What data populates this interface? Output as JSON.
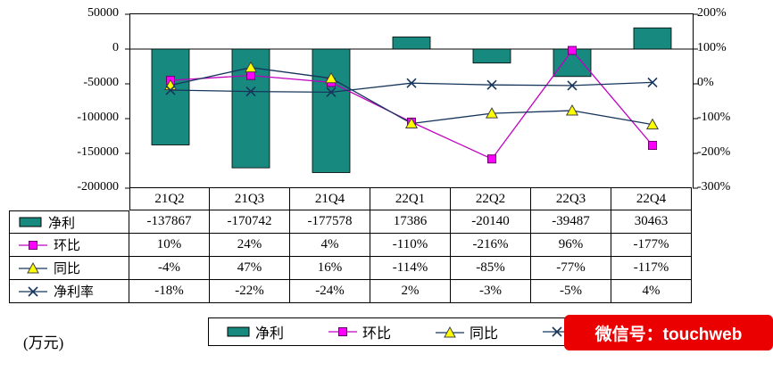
{
  "unit_label": "(万元)",
  "watermark": {
    "text": "微信号：touchweb",
    "bg": "#ea0000",
    "fg": "#ffffff"
  },
  "chart_data": {
    "type": "bar+line",
    "categories": [
      "21Q2",
      "21Q3",
      "21Q4",
      "22Q1",
      "22Q2",
      "22Q3",
      "22Q4"
    ],
    "series": [
      {
        "name": "净利",
        "type": "bar",
        "axis": "left",
        "unit": "万元",
        "color": "#17897f",
        "border_color": "#000000",
        "values": [
          -137867,
          -170742,
          -177578,
          17386,
          -20140,
          -39487,
          30463
        ]
      },
      {
        "name": "环比",
        "type": "line",
        "marker": "square",
        "axis": "right",
        "unit": "%",
        "line_color": "#c000c0",
        "marker_color": "#ff00ff",
        "values": [
          10,
          24,
          4,
          -110,
          -216,
          96,
          -177
        ]
      },
      {
        "name": "同比",
        "type": "line",
        "marker": "triangle",
        "axis": "right",
        "unit": "%",
        "line_color": "#16365c",
        "marker_color": "#ffff00",
        "values": [
          -4,
          47,
          16,
          -114,
          -85,
          -77,
          -117
        ]
      },
      {
        "name": "净利率",
        "type": "line",
        "marker": "x",
        "axis": "right",
        "unit": "%",
        "line_color": "#16365c",
        "marker_color": "#16365c",
        "values": [
          -18,
          -22,
          -24,
          2,
          -3,
          -5,
          4
        ]
      }
    ],
    "left_axis": {
      "min": -200000,
      "max": 50000,
      "tick_labels": [
        "50000",
        "0",
        "-50000",
        "-100000",
        "-150000",
        "-200000"
      ]
    },
    "right_axis": {
      "min": -300,
      "max": 200,
      "tick_labels": [
        "200%",
        "100%",
        "0%",
        "-100%",
        "-200%",
        "-300%"
      ]
    },
    "grid": false,
    "legend_position": "bottom"
  },
  "table": {
    "columns": [
      "21Q2",
      "21Q3",
      "21Q4",
      "22Q1",
      "22Q2",
      "22Q3",
      "22Q4"
    ],
    "row_labels": [
      "净利",
      "环比",
      "同比",
      "净利率"
    ],
    "rows": [
      [
        "-137867",
        "-170742",
        "-177578",
        "17386",
        "-20140",
        "-39487",
        "30463"
      ],
      [
        "10%",
        "24%",
        "4%",
        "-110%",
        "-216%",
        "96%",
        "-177%"
      ],
      [
        "-4%",
        "47%",
        "16%",
        "-114%",
        "-85%",
        "-77%",
        "-117%"
      ],
      [
        "-18%",
        "-22%",
        "-24%",
        "2%",
        "-3%",
        "-5%",
        "4%"
      ]
    ]
  },
  "legend": {
    "items": [
      "净利",
      "环比",
      "同比",
      "净利率"
    ]
  }
}
